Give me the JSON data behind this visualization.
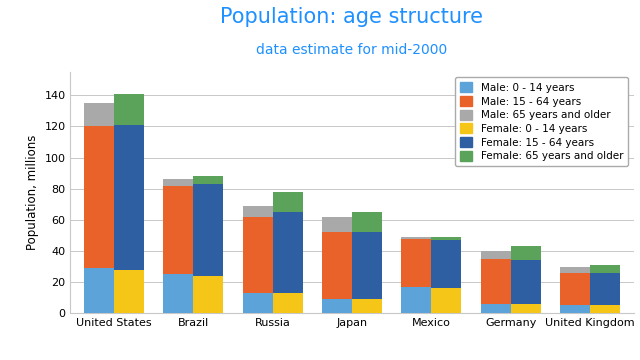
{
  "title": "Population: age structure",
  "subtitle": "data estimate for mid-2000",
  "ylabel": "Population, millions",
  "countries": [
    "United States",
    "Brazil",
    "Russia",
    "Japan",
    "Mexico",
    "Germany",
    "United Kingdom"
  ],
  "series": [
    {
      "label": "Male: 0 - 14 years",
      "color": "#5BA3D9",
      "values": [
        29,
        25,
        13,
        9,
        17,
        6,
        5
      ]
    },
    {
      "label": "Male: 15 - 64 years",
      "color": "#E8622A",
      "values": [
        91,
        57,
        49,
        43,
        31,
        29,
        21
      ]
    },
    {
      "label": "Male: 65 years and older",
      "color": "#A9A9A9",
      "values": [
        15,
        4,
        7,
        10,
        1,
        5,
        4
      ]
    },
    {
      "label": "Female: 0 - 14 years",
      "color": "#F5C518",
      "values": [
        28,
        24,
        13,
        9,
        16,
        6,
        5
      ]
    },
    {
      "label": "Female: 15 - 64 years",
      "color": "#2E5FA3",
      "values": [
        93,
        59,
        52,
        43,
        31,
        28,
        21
      ]
    },
    {
      "label": "Female: 65 years and older",
      "color": "#5BA35B",
      "values": [
        20,
        5,
        13,
        13,
        2,
        9,
        5
      ]
    }
  ],
  "ylim": [
    0,
    155
  ],
  "yticks": [
    0,
    20,
    40,
    60,
    80,
    100,
    120,
    140
  ],
  "bar_width": 0.38,
  "title_color": "#1E90FF",
  "subtitle_color": "#1E90FF",
  "background_color": "#FFFFFF",
  "plot_bg_color": "#FFFFFF",
  "grid_color": "#C8C8C8",
  "title_fontsize": 15,
  "subtitle_fontsize": 10,
  "axis_label_fontsize": 8.5,
  "tick_fontsize": 8,
  "legend_fontsize": 7.5
}
